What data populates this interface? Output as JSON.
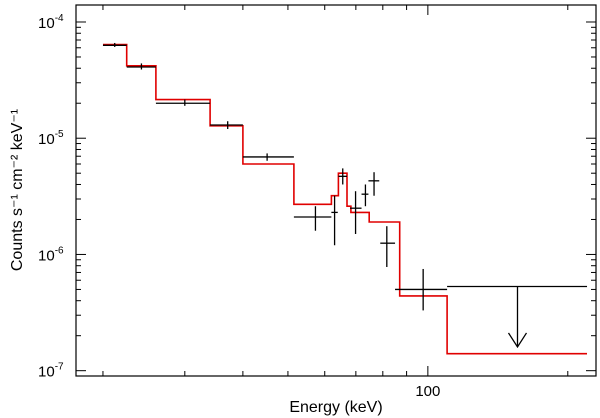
{
  "chart_data": {
    "type": "line",
    "title": "",
    "xlabel": "Energy (keV)",
    "ylabel": "Counts s⁻¹ cm⁻² keV⁻¹",
    "xscale": "log",
    "yscale": "log",
    "xlim": [
      17.5,
      230
    ],
    "ylim": [
      9e-08,
      0.00014
    ],
    "x_tick_labels": [
      {
        "value": 100,
        "label": "100"
      }
    ],
    "y_tick_labels": [
      {
        "value": 1e-07,
        "base": "10",
        "exp": "-7"
      },
      {
        "value": 1e-06,
        "base": "10",
        "exp": "-6"
      },
      {
        "value": 1e-05,
        "base": "10",
        "exp": "-5"
      },
      {
        "value": 0.0001,
        "base": "10",
        "exp": "-4"
      }
    ],
    "grid": false,
    "colors": {
      "data": "#000000",
      "model": "#e00000"
    },
    "series": [
      {
        "kind": "data_crosses",
        "points": [
          {
            "x": 21.2,
            "xlo": 20.0,
            "xhi": 22.5,
            "y": 6.3e-05,
            "ylo": 6.1e-05,
            "yhi": 6.6e-05
          },
          {
            "x": 24.2,
            "xlo": 22.5,
            "xhi": 26.0,
            "y": 4.1e-05,
            "ylo": 3.9e-05,
            "yhi": 4.4e-05
          },
          {
            "x": 30.0,
            "xlo": 26.0,
            "xhi": 34.0,
            "y": 2e-05,
            "ylo": 1.9e-05,
            "yhi": 2.15e-05
          },
          {
            "x": 37.1,
            "xlo": 34.0,
            "xhi": 40.0,
            "y": 1.3e-05,
            "ylo": 1.2e-05,
            "yhi": 1.4e-05
          },
          {
            "x": 45.1,
            "xlo": 40.0,
            "xhi": 51.5,
            "y": 6.9e-06,
            "ylo": 6.4e-06,
            "yhi": 7.4e-06
          },
          {
            "x": 57.3,
            "xlo": 51.5,
            "xhi": 62.0,
            "y": 2.1e-06,
            "ylo": 1.6e-06,
            "yhi": 2.6e-06
          },
          {
            "x": 63.0,
            "xlo": 62.0,
            "xhi": 64.0,
            "y": 2.3e-06,
            "ylo": 1.2e-06,
            "yhi": 3.2e-06
          },
          {
            "x": 65.6,
            "xlo": 64.2,
            "xhi": 67.0,
            "y": 4.7e-06,
            "ylo": 4e-06,
            "yhi": 5.5e-06
          },
          {
            "x": 69.9,
            "xlo": 68.0,
            "xhi": 72.0,
            "y": 2.5e-06,
            "ylo": 1.5e-06,
            "yhi": 3.5e-06
          },
          {
            "x": 73.4,
            "xlo": 72.0,
            "xhi": 74.5,
            "y": 3.3e-06,
            "ylo": 2.6e-06,
            "yhi": 4e-06
          },
          {
            "x": 76.6,
            "xlo": 74.5,
            "xhi": 78.6,
            "y": 4.3e-06,
            "ylo": 3.2e-06,
            "yhi": 5.1e-06
          },
          {
            "x": 81.6,
            "xlo": 79.0,
            "xhi": 85.0,
            "y": 1.25e-06,
            "ylo": 7.8e-07,
            "yhi": 1.75e-06
          },
          {
            "x": 97.7,
            "xlo": 85.0,
            "xhi": 110.0,
            "y": 5e-07,
            "ylo": 3.3e-07,
            "yhi": 7.5e-07
          }
        ],
        "upper_limit": {
          "x": 155.9,
          "xlo": 110.0,
          "xhi": 220.0,
          "y": 5.3e-07,
          "arrow_to": 1.6e-07
        }
      },
      {
        "kind": "model_step",
        "steps": [
          {
            "x0": 20.0,
            "x1": 22.5,
            "y": 6.4e-05
          },
          {
            "x0": 22.5,
            "x1": 26.0,
            "y": 4.2e-05
          },
          {
            "x0": 26.0,
            "x1": 34.0,
            "y": 2.15e-05
          },
          {
            "x0": 34.0,
            "x1": 40.0,
            "y": 1.28e-05
          },
          {
            "x0": 40.0,
            "x1": 51.5,
            "y": 6e-06
          },
          {
            "x0": 51.5,
            "x1": 62.0,
            "y": 2.7e-06
          },
          {
            "x0": 62.0,
            "x1": 64.2,
            "y": 3.2e-06
          },
          {
            "x0": 64.2,
            "x1": 67.0,
            "y": 5e-06
          },
          {
            "x0": 67.0,
            "x1": 68.3,
            "y": 2.6e-06
          },
          {
            "x0": 68.3,
            "x1": 74.8,
            "y": 2.3e-06
          },
          {
            "x0": 74.8,
            "x1": 79.0,
            "y": 1.9e-06
          },
          {
            "x0": 79.0,
            "x1": 87.0,
            "y": 1.9e-06
          },
          {
            "x0": 87.0,
            "x1": 110.0,
            "y": 4.4e-07
          },
          {
            "x0": 110.0,
            "x1": 220.0,
            "y": 1.4e-07
          }
        ]
      }
    ]
  }
}
